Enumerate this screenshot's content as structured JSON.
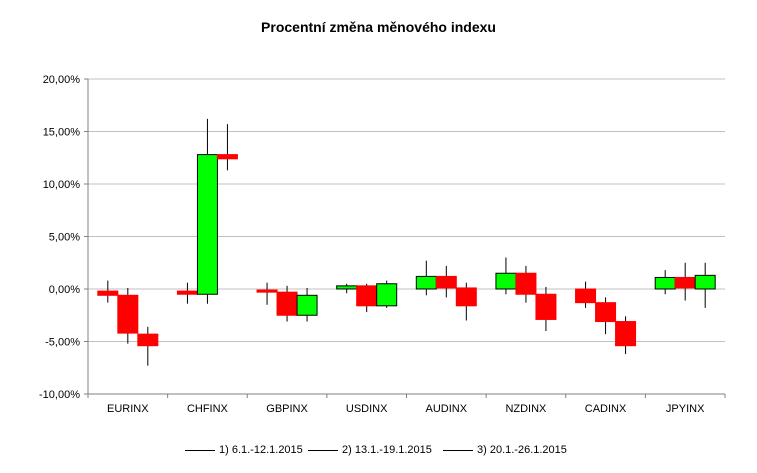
{
  "chart_data": {
    "type": "candlestick",
    "title": "Procentní změna měnového indexu",
    "ylim": [
      -10,
      20
    ],
    "yticks": [
      "-10,00%",
      "-5,00%",
      "0,00%",
      "5,00%",
      "10,00%",
      "15,00%",
      "20,00%"
    ],
    "grid": true,
    "legend_position": "bottom",
    "categories": [
      "EURINX",
      "CHFINX",
      "GBPINX",
      "USDINX",
      "AUDINX",
      "NZDINX",
      "CADINX",
      "JPYINX"
    ],
    "series": [
      {
        "name": "1) 6.1.-12.1.2015",
        "candles": [
          {
            "open": -0.2,
            "close": -0.6,
            "high": 0.8,
            "low": -1.3
          },
          {
            "open": -0.2,
            "close": -0.5,
            "high": 0.6,
            "low": -1.4
          },
          {
            "open": -0.1,
            "close": -0.3,
            "high": 0.6,
            "low": -1.5
          },
          {
            "open": 0.0,
            "close": 0.3,
            "high": 0.5,
            "low": -0.4
          },
          {
            "open": 0.0,
            "close": 1.2,
            "high": 2.7,
            "low": -0.6
          },
          {
            "open": 0.0,
            "close": 1.5,
            "high": 3.0,
            "low": -0.5
          },
          {
            "open": 0.0,
            "close": -1.3,
            "high": 0.7,
            "low": -1.8
          },
          {
            "open": 0.0,
            "close": 1.1,
            "high": 1.8,
            "low": -0.5
          }
        ]
      },
      {
        "name": "2) 13.1.-19.1.2015",
        "candles": [
          {
            "open": -0.6,
            "close": -4.2,
            "high": 0.1,
            "low": -5.2
          },
          {
            "open": -0.5,
            "close": 12.8,
            "high": 16.2,
            "low": -1.4
          },
          {
            "open": -0.3,
            "close": -2.5,
            "high": 0.3,
            "low": -3.1
          },
          {
            "open": 0.3,
            "close": -1.6,
            "high": 0.5,
            "low": -2.2
          },
          {
            "open": 1.2,
            "close": 0.1,
            "high": 2.2,
            "low": -0.8
          },
          {
            "open": 1.5,
            "close": -0.5,
            "high": 2.2,
            "low": -1.3
          },
          {
            "open": -1.3,
            "close": -3.1,
            "high": -0.8,
            "low": -4.3
          },
          {
            "open": 1.1,
            "close": 0.1,
            "high": 2.5,
            "low": -1.1
          }
        ]
      },
      {
        "name": "3) 20.1.-26.1.2015",
        "candles": [
          {
            "open": -4.3,
            "close": -5.4,
            "high": -3.6,
            "low": -7.3
          },
          {
            "open": 12.8,
            "close": 12.4,
            "high": 15.7,
            "low": 11.3
          },
          {
            "open": -2.5,
            "close": -0.6,
            "high": 0.1,
            "low": -3.1
          },
          {
            "open": -1.6,
            "close": 0.5,
            "high": 0.8,
            "low": -1.8
          },
          {
            "open": 0.1,
            "close": -1.6,
            "high": 0.6,
            "low": -3.0
          },
          {
            "open": -0.5,
            "close": -2.9,
            "high": 0.2,
            "low": -4.0
          },
          {
            "open": -3.1,
            "close": -5.4,
            "high": -2.6,
            "low": -6.2
          },
          {
            "open": 0.0,
            "close": 1.3,
            "high": 2.5,
            "low": -1.8
          }
        ]
      }
    ],
    "colors": {
      "up": "#00ff00",
      "down": "#ff0000",
      "outline": "#000000",
      "grid": "#c0c0c0",
      "axis": "#808080"
    }
  }
}
